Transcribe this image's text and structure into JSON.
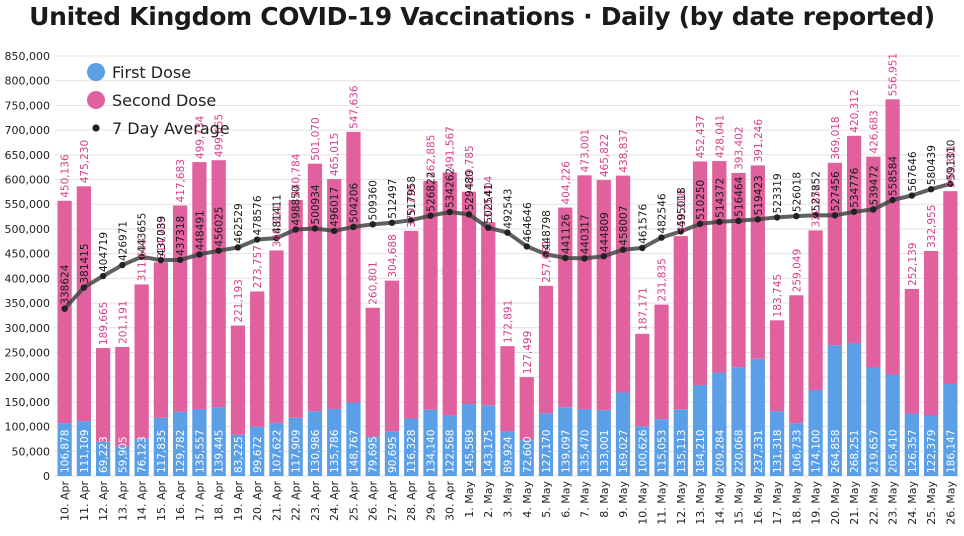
{
  "chart_data": {
    "type": "bar",
    "title": "United Kingdom COVID-19 Vaccinations · Daily (by date reported)",
    "categories": [
      "10. Apr",
      "11. Apr",
      "12. Apr",
      "13. Apr",
      "14. Apr",
      "15. Apr",
      "16. Apr",
      "17. Apr",
      "18. Apr",
      "19. Apr",
      "20. Apr",
      "21. Apr",
      "22. Apr",
      "23. Apr",
      "24. Apr",
      "25. Apr",
      "26. Apr",
      "27. Apr",
      "28. Apr",
      "29. Apr",
      "30. Apr",
      "1. May",
      "2. May",
      "3. May",
      "4. May",
      "5. May",
      "6. May",
      "7. May",
      "8. May",
      "9. May",
      "10. May",
      "11. May",
      "12. May",
      "13. May",
      "14. May",
      "15. May",
      "16. May",
      "17. May",
      "18. May",
      "19. May",
      "20. May",
      "21. May",
      "22. May",
      "23. May",
      "24. May",
      "25. May",
      "26. May"
    ],
    "stacked": true,
    "series": [
      {
        "name": "First Dose",
        "kind": "bar",
        "color": "#5b9fe6",
        "label_color": "#ffffff",
        "values": [
          106878,
          111109,
          69223,
          59905,
          76123,
          117835,
          129782,
          135557,
          139445,
          83225,
          99672,
          107622,
          117909,
          130986,
          135786,
          148767,
          79695,
          90695,
          116328,
          134140,
          122568,
          145589,
          143175,
          89924,
          72600,
          127170,
          139097,
          135470,
          133001,
          169027,
          100626,
          115053,
          135113,
          184210,
          209284,
          220068,
          237331,
          131318,
          106733,
          174100,
          264858,
          268251,
          219657,
          205410,
          126357,
          122379,
          186147
        ]
      },
      {
        "name": "Second Dose",
        "kind": "bar",
        "color": "#e0619e",
        "label_color": "#d6408a",
        "values": [
          450136,
          475230,
          189665,
          201191,
          311633,
          314783,
          417683,
          499734,
          499655,
          221193,
          273757,
          348811,
          440784,
          501070,
          465015,
          547636,
          260801,
          304688,
          379778,
          462885,
          491567,
          429785,
          370404,
          172891,
          127499,
          257681,
          404226,
          473001,
          465822,
          438837,
          187171,
          231835,
          350318,
          452437,
          428041,
          393402,
          391246,
          183745,
          259049,
          322852,
          369018,
          420312,
          426683,
          556951,
          252139,
          332955,
          390301
        ]
      },
      {
        "name": "7 Day Average",
        "kind": "line",
        "color": "#3a3a3a",
        "label_color": "#1a1a1a",
        "values": [
          338624,
          381415,
          404719,
          426971,
          443655,
          437039,
          437318,
          448491,
          456025,
          462529,
          478576,
          481411,
          498850,
          500934,
          496017,
          504206,
          509360,
          512497,
          517958,
          526822,
          534262,
          529480,
          502541,
          492543,
          464646,
          448798,
          441126,
          440317,
          444809,
          458007,
          461576,
          482546,
          495018,
          510250,
          514372,
          516464,
          519423,
          523319,
          526018,
          527852,
          527456,
          534776,
          539472,
          558584,
          567646,
          580439,
          591310
        ]
      }
    ],
    "ylim": [
      0,
      850000
    ],
    "yticks": [
      "0",
      "50,000",
      "100,000",
      "150,000",
      "200,000",
      "250,000",
      "300,000",
      "350,000",
      "400,000",
      "450,000",
      "500,000",
      "550,000",
      "600,000",
      "650,000",
      "700,000",
      "750,000",
      "800,000",
      "850,000"
    ],
    "xlabel": "",
    "ylabel": "",
    "grid": true,
    "legend": {
      "position": "top-left",
      "entries": [
        "First Dose",
        "Second Dose",
        "7 Day Average"
      ]
    },
    "bar_label_format": "thousands-comma",
    "line_label_format": "plain",
    "watermark": "Hinebian"
  }
}
